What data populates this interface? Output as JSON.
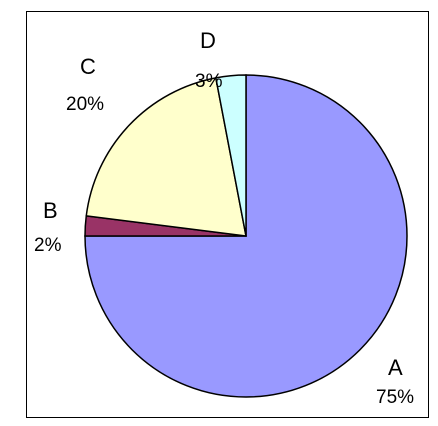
{
  "chart_data": {
    "type": "pie",
    "title": "",
    "slices": [
      {
        "label": "A",
        "value": 75,
        "value_text": "75%",
        "color": "#9999ff"
      },
      {
        "label": "B",
        "value": 2,
        "value_text": "2%",
        "color": "#993366"
      },
      {
        "label": "C",
        "value": 20,
        "value_text": "20%",
        "color": "#ffffcc"
      },
      {
        "label": "D",
        "value": 3,
        "value_text": "3%",
        "color": "#ccffff"
      }
    ],
    "legend": "none",
    "border_color": "#000000"
  }
}
